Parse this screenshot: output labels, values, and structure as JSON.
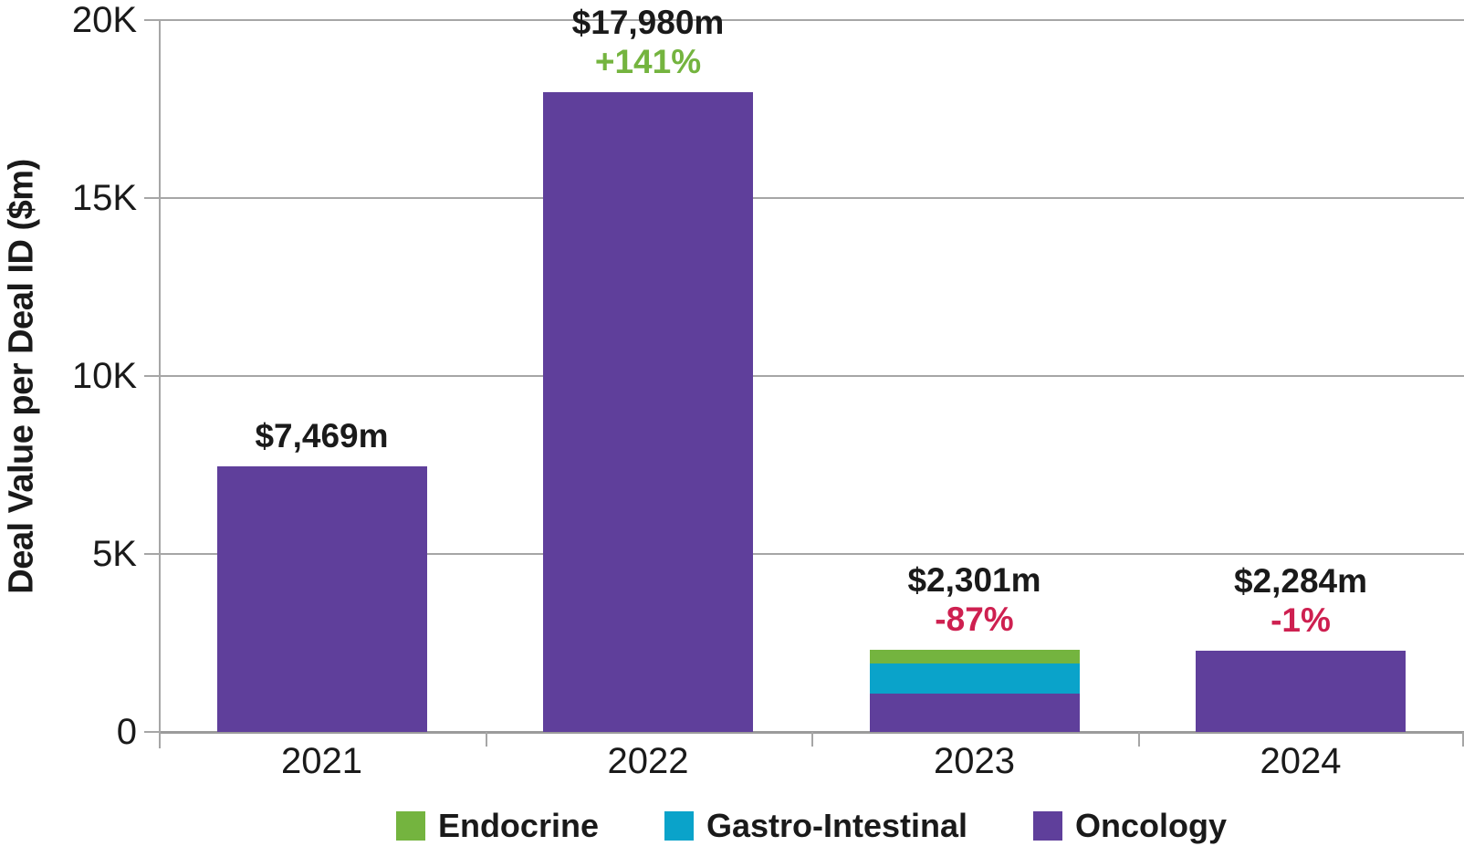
{
  "chart_data": {
    "type": "bar",
    "variant": "stacked",
    "title": "",
    "xlabel": "",
    "ylabel": "Deal Value per Deal ID ($m)",
    "ylim": [
      0,
      20000
    ],
    "grid": true,
    "legend_position": "bottom",
    "yticks": [
      {
        "value": 0,
        "label": "0"
      },
      {
        "value": 5000,
        "label": "5K"
      },
      {
        "value": 10000,
        "label": "10K"
      },
      {
        "value": 15000,
        "label": "15K"
      },
      {
        "value": 20000,
        "label": "20K"
      }
    ],
    "categories": [
      "2021",
      "2022",
      "2023",
      "2024"
    ],
    "series": [
      {
        "name": "Endocrine",
        "color": "#74B43F",
        "values": [
          0,
          0,
          370,
          0
        ]
      },
      {
        "name": "Gastro-Intestinal",
        "color": "#0AA3CA",
        "values": [
          0,
          0,
          860,
          0
        ]
      },
      {
        "name": "Oncology",
        "color": "#5F3F9B",
        "values": [
          7469,
          17980,
          1071,
          2284
        ]
      }
    ],
    "bar_labels": [
      {
        "total": "$7,469m",
        "pct_change": null
      },
      {
        "total": "$17,980m",
        "pct_change": "+141%"
      },
      {
        "total": "$2,301m",
        "pct_change": "-87%"
      },
      {
        "total": "$2,284m",
        "pct_change": "-1%"
      }
    ],
    "colors": {
      "pct_positive": "#74B43F",
      "pct_negative": "#CE2050",
      "grid": "#A6A6A6",
      "axis": "#9B9B9B",
      "text": "#1A1A1A"
    },
    "legend": [
      "Endocrine",
      "Gastro-Intestinal",
      "Oncology"
    ]
  }
}
